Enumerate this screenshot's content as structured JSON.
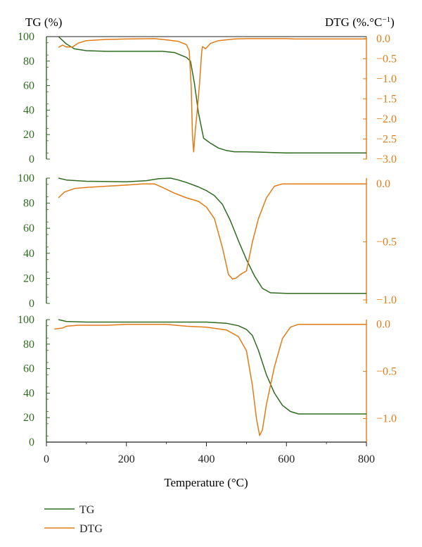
{
  "colors": {
    "tg": "#2e6b1f",
    "dtg": "#e07b16",
    "frame": "#222222"
  },
  "chart_data": {
    "type": "line",
    "title": "",
    "xlabel": "Temperature (°C)",
    "xlim": [
      0,
      800
    ],
    "xticks": [
      0,
      200,
      400,
      600,
      800
    ],
    "tg_label": "TG (%)",
    "dtg_label": "DTG (%.°C",
    "dtg_label_sup": "−1",
    "dtg_label_close": ")",
    "legend": [
      {
        "name": "TG",
        "color_key": "tg"
      },
      {
        "name": "DTG",
        "color_key": "dtg"
      }
    ],
    "panels": [
      {
        "tg_ylim": [
          0,
          100
        ],
        "tg_yticks": [
          0,
          20,
          40,
          60,
          80,
          100
        ],
        "dtg_ylim": [
          -3.0,
          0.05
        ],
        "dtg_yticks": [
          {
            "v": 0.0,
            "label": "0.0"
          },
          {
            "v": -0.5,
            "label": "−0.5"
          },
          {
            "v": -1.0,
            "label": "−1.0"
          },
          {
            "v": -1.5,
            "label": "−1.5"
          },
          {
            "v": -2.0,
            "label": "−2.0"
          },
          {
            "v": -2.5,
            "label": "−2.5"
          },
          {
            "v": -3.0,
            "label": "−3.0"
          }
        ],
        "tg": [
          [
            30,
            100
          ],
          [
            50,
            94
          ],
          [
            70,
            90
          ],
          [
            100,
            88.5
          ],
          [
            150,
            88
          ],
          [
            200,
            88
          ],
          [
            250,
            88
          ],
          [
            290,
            88
          ],
          [
            320,
            87
          ],
          [
            350,
            83
          ],
          [
            360,
            80
          ],
          [
            370,
            62
          ],
          [
            380,
            38
          ],
          [
            393,
            17
          ],
          [
            410,
            13
          ],
          [
            430,
            9
          ],
          [
            450,
            7
          ],
          [
            470,
            6
          ],
          [
            500,
            6
          ],
          [
            550,
            5.5
          ],
          [
            600,
            5
          ],
          [
            700,
            5
          ],
          [
            800,
            5
          ]
        ],
        "dtg": [
          [
            30,
            -0.22
          ],
          [
            40,
            -0.16
          ],
          [
            50,
            -0.21
          ],
          [
            65,
            -0.21
          ],
          [
            80,
            -0.11
          ],
          [
            100,
            -0.05
          ],
          [
            150,
            -0.02
          ],
          [
            200,
            -0.01
          ],
          [
            270,
            0.0
          ],
          [
            300,
            -0.03
          ],
          [
            330,
            -0.07
          ],
          [
            350,
            -0.15
          ],
          [
            357,
            -0.3
          ],
          [
            362,
            -1.2
          ],
          [
            365,
            -2.4
          ],
          [
            368,
            -2.82
          ],
          [
            372,
            -2.3
          ],
          [
            377,
            -1.8
          ],
          [
            383,
            -1.1
          ],
          [
            388,
            -0.35
          ],
          [
            390,
            -0.2
          ],
          [
            398,
            -0.25
          ],
          [
            410,
            -0.12
          ],
          [
            430,
            -0.05
          ],
          [
            470,
            -0.01
          ],
          [
            500,
            0.0
          ],
          [
            600,
            0.0
          ],
          [
            620,
            -0.01
          ],
          [
            700,
            -0.01
          ],
          [
            800,
            -0.01
          ]
        ]
      },
      {
        "tg_ylim": [
          0,
          100
        ],
        "tg_yticks": [
          0,
          20,
          40,
          60,
          80,
          100
        ],
        "dtg_ylim": [
          -1.03,
          0.05
        ],
        "dtg_yticks": [
          {
            "v": 0.0,
            "label": "0.0"
          },
          {
            "v": -0.5,
            "label": "−0.5"
          },
          {
            "v": -1.0,
            "label": "−1.0"
          }
        ],
        "tg": [
          [
            30,
            100
          ],
          [
            50,
            98.5
          ],
          [
            100,
            97.5
          ],
          [
            200,
            97
          ],
          [
            250,
            98
          ],
          [
            280,
            99.5
          ],
          [
            310,
            100
          ],
          [
            330,
            98.5
          ],
          [
            350,
            96.5
          ],
          [
            380,
            93
          ],
          [
            400,
            90
          ],
          [
            420,
            86
          ],
          [
            440,
            79
          ],
          [
            460,
            66
          ],
          [
            480,
            50
          ],
          [
            500,
            35
          ],
          [
            520,
            22
          ],
          [
            540,
            12
          ],
          [
            560,
            8.5
          ],
          [
            600,
            8
          ],
          [
            700,
            8
          ],
          [
            800,
            8
          ]
        ],
        "dtg": [
          [
            30,
            -0.12
          ],
          [
            45,
            -0.07
          ],
          [
            70,
            -0.04
          ],
          [
            100,
            -0.03
          ],
          [
            150,
            -0.02
          ],
          [
            200,
            -0.01
          ],
          [
            240,
            0.0
          ],
          [
            270,
            0.0
          ],
          [
            290,
            -0.03
          ],
          [
            320,
            -0.08
          ],
          [
            350,
            -0.12
          ],
          [
            380,
            -0.15
          ],
          [
            400,
            -0.2
          ],
          [
            420,
            -0.3
          ],
          [
            440,
            -0.55
          ],
          [
            455,
            -0.78
          ],
          [
            465,
            -0.82
          ],
          [
            475,
            -0.81
          ],
          [
            485,
            -0.78
          ],
          [
            500,
            -0.75
          ],
          [
            515,
            -0.5
          ],
          [
            530,
            -0.3
          ],
          [
            550,
            -0.12
          ],
          [
            570,
            -0.02
          ],
          [
            590,
            0.0
          ],
          [
            620,
            0.0
          ],
          [
            700,
            0.0
          ],
          [
            800,
            0.0
          ]
        ]
      },
      {
        "tg_ylim": [
          0,
          100
        ],
        "tg_yticks": [
          0,
          20,
          40,
          60,
          80,
          100
        ],
        "dtg_ylim": [
          -1.25,
          0.05
        ],
        "dtg_yticks": [
          {
            "v": 0.0,
            "label": "0.0"
          },
          {
            "v": -0.5,
            "label": "−0.5"
          },
          {
            "v": -1.0,
            "label": "−1.0"
          }
        ],
        "tg": [
          [
            30,
            100
          ],
          [
            50,
            98.5
          ],
          [
            100,
            98
          ],
          [
            200,
            98
          ],
          [
            300,
            98
          ],
          [
            400,
            98
          ],
          [
            450,
            97
          ],
          [
            480,
            95
          ],
          [
            500,
            92
          ],
          [
            515,
            87
          ],
          [
            530,
            75
          ],
          [
            550,
            55
          ],
          [
            570,
            40
          ],
          [
            590,
            30
          ],
          [
            610,
            25
          ],
          [
            630,
            23
          ],
          [
            700,
            23
          ],
          [
            800,
            23
          ]
        ],
        "dtg": [
          [
            20,
            -0.05
          ],
          [
            40,
            -0.04
          ],
          [
            50,
            -0.02
          ],
          [
            80,
            -0.01
          ],
          [
            150,
            -0.01
          ],
          [
            200,
            0.0
          ],
          [
            300,
            0.0
          ],
          [
            350,
            -0.02
          ],
          [
            400,
            -0.03
          ],
          [
            450,
            -0.06
          ],
          [
            480,
            -0.13
          ],
          [
            500,
            -0.28
          ],
          [
            515,
            -0.65
          ],
          [
            525,
            -1.0
          ],
          [
            533,
            -1.18
          ],
          [
            540,
            -1.12
          ],
          [
            550,
            -0.85
          ],
          [
            570,
            -0.45
          ],
          [
            590,
            -0.15
          ],
          [
            610,
            -0.03
          ],
          [
            630,
            0.0
          ],
          [
            700,
            0.0
          ],
          [
            800,
            0.0
          ]
        ]
      }
    ]
  }
}
